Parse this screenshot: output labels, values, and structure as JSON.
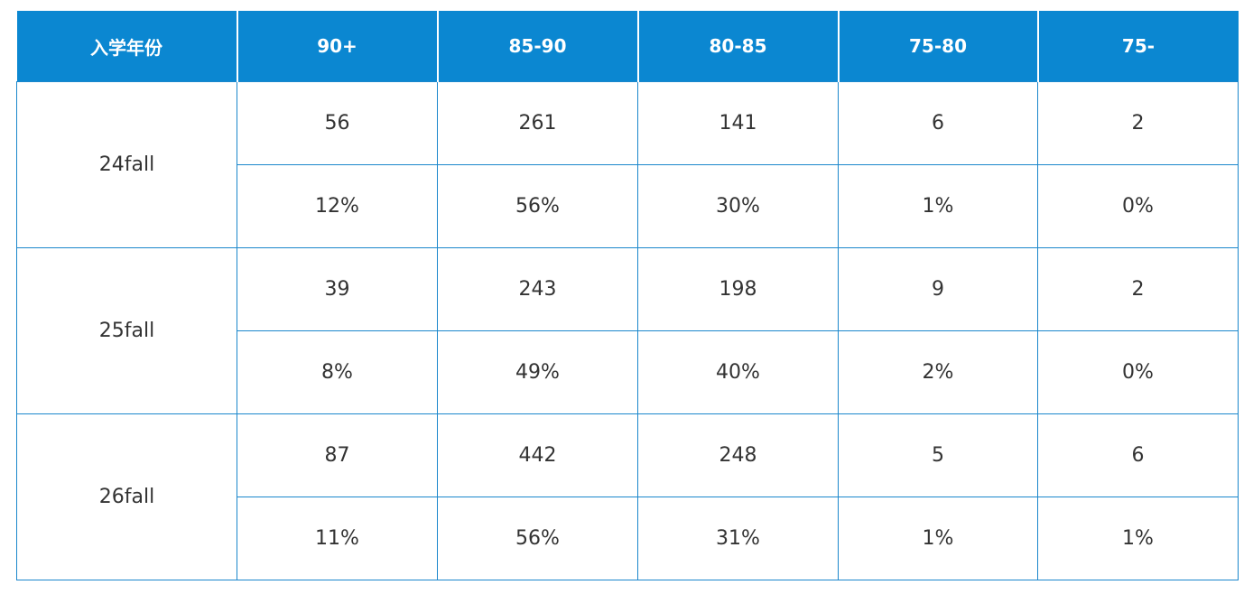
{
  "table": {
    "header": [
      "入学年份",
      "90+",
      "85-90",
      "80-85",
      "75-80",
      "75-"
    ],
    "rows": [
      {
        "year": "24fall",
        "counts": [
          "56",
          "261",
          "141",
          "6",
          "2"
        ],
        "percents": [
          "12%",
          "56%",
          "30%",
          "1%",
          "0%"
        ]
      },
      {
        "year": "25fall",
        "counts": [
          "39",
          "243",
          "198",
          "9",
          "2"
        ],
        "percents": [
          "8%",
          "49%",
          "40%",
          "2%",
          "0%"
        ]
      },
      {
        "year": "26fall",
        "counts": [
          "87",
          "442",
          "248",
          "5",
          "6"
        ],
        "percents": [
          "11%",
          "56%",
          "31%",
          "1%",
          "1%"
        ]
      }
    ]
  }
}
